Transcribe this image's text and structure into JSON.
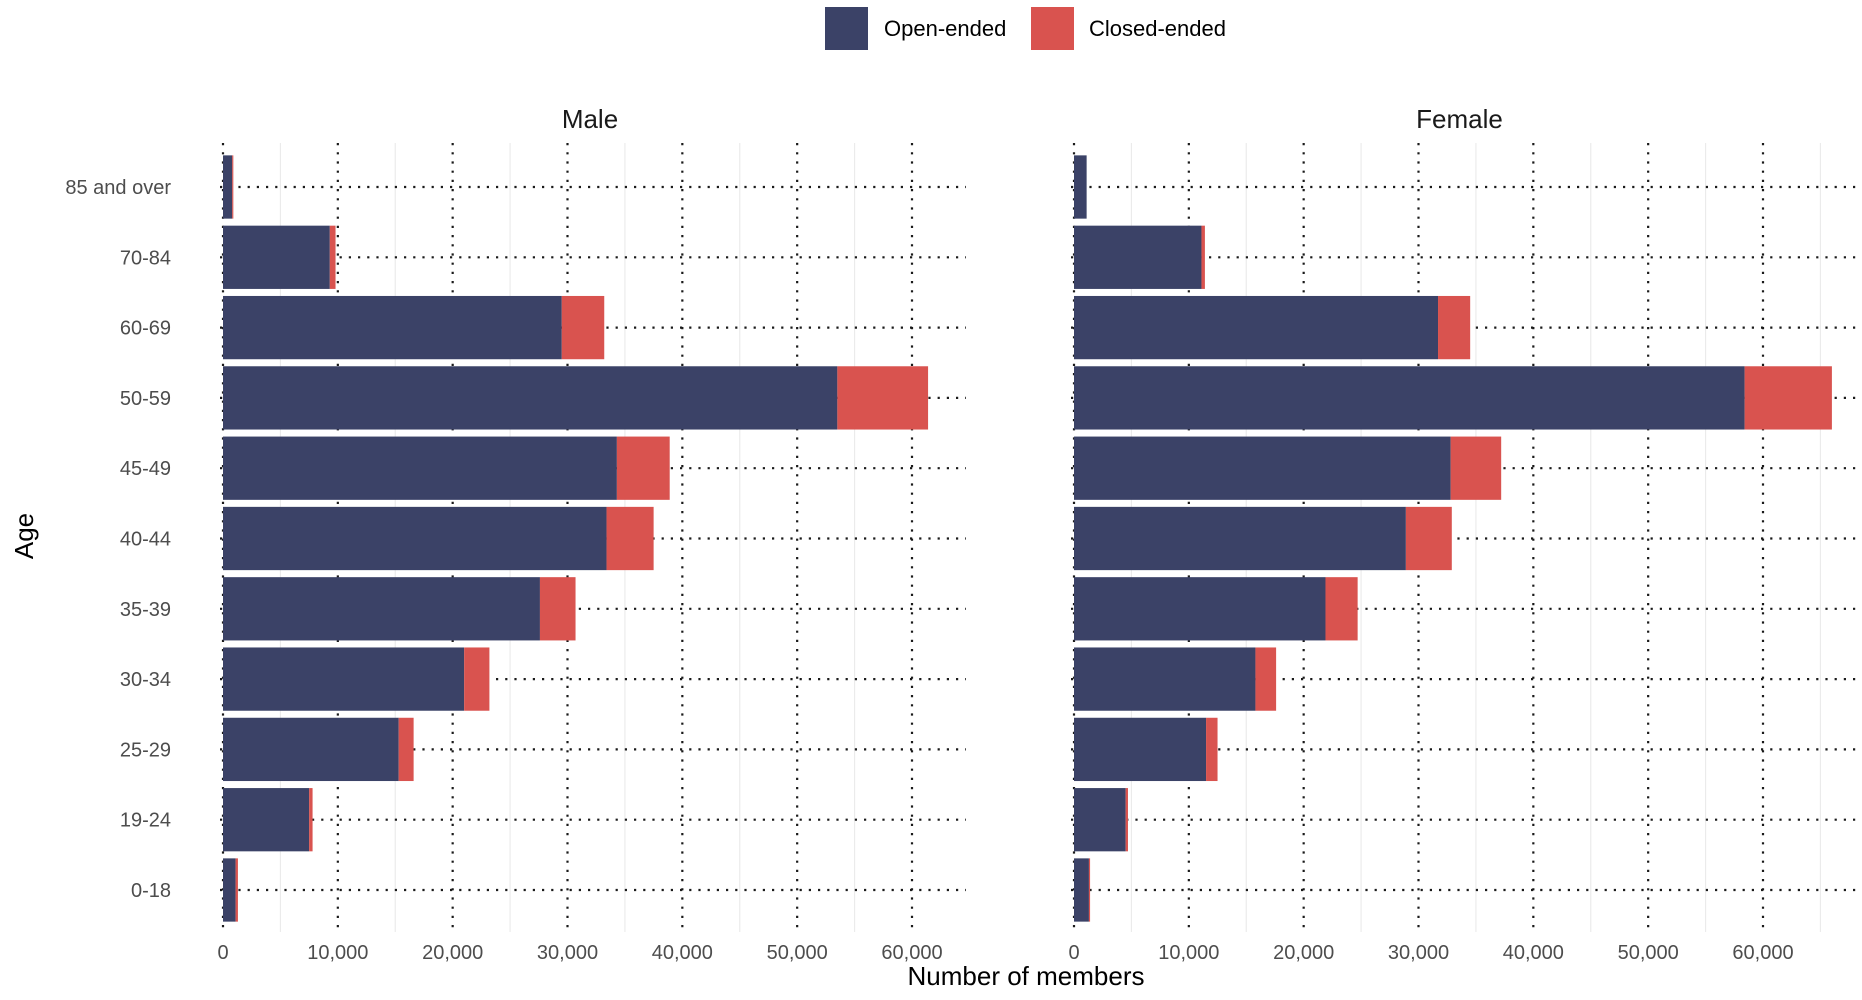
{
  "chart_data": {
    "type": "bar",
    "orientation": "horizontal",
    "stacked": true,
    "facets": [
      "Male",
      "Female"
    ],
    "categories": [
      "0-18",
      "19-24",
      "25-29",
      "30-34",
      "35-39",
      "40-44",
      "45-49",
      "50-59",
      "60-69",
      "70-84",
      "85 and over"
    ],
    "series": [
      {
        "name": "Open-ended",
        "color": "#3b4267",
        "values": {
          "Male": [
            1100,
            7500,
            15300,
            21000,
            27600,
            33400,
            34300,
            53500,
            29500,
            9300,
            800
          ],
          "Female": [
            1300,
            4500,
            11500,
            15800,
            21900,
            28900,
            32800,
            58400,
            31700,
            11100,
            1100
          ]
        }
      },
      {
        "name": "Closed-ended",
        "color": "#d9534f",
        "values": {
          "Male": [
            200,
            300,
            1300,
            2200,
            3100,
            4100,
            4600,
            7900,
            3700,
            500,
            100
          ],
          "Female": [
            100,
            200,
            1000,
            1800,
            2800,
            4000,
            4400,
            7600,
            2800,
            300,
            0
          ]
        }
      }
    ],
    "xlabel": "Number of members",
    "ylabel": "Age",
    "x_ticks": [
      "0",
      "10,000",
      "20,000",
      "30,000",
      "40,000",
      "50,000",
      "60,000"
    ],
    "x_tick_values": [
      0,
      10000,
      20000,
      30000,
      40000,
      50000,
      60000
    ],
    "xlim": [
      -1200,
      66200
    ],
    "grid": "dotted",
    "legend_position": "top"
  }
}
